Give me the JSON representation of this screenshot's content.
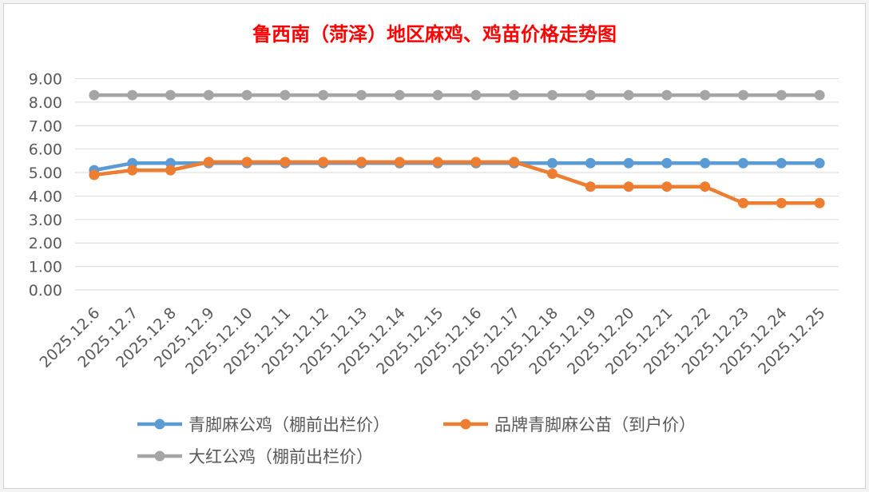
{
  "chart_data": {
    "type": "line",
    "title": "鲁西南（菏泽）地区麻鸡、鸡苗价格走势图",
    "xlabel": "",
    "ylabel": "",
    "ylim": [
      0,
      9
    ],
    "ytick_labels": [
      "0.00",
      "1.00",
      "2.00",
      "3.00",
      "4.00",
      "5.00",
      "6.00",
      "7.00",
      "8.00",
      "9.00"
    ],
    "grid": true,
    "legend_placement": "bottom",
    "categories": [
      "2025.12.6",
      "2025.12.7",
      "2025.12.8",
      "2025.12.9",
      "2025.12.10",
      "2025.12.11",
      "2025.12.12",
      "2025.12.13",
      "2025.12.14",
      "2025.12.15",
      "2025.12.16",
      "2025.12.17",
      "2025.12.18",
      "2025.12.19",
      "2025.12.20",
      "2025.12.21",
      "2025.12.22",
      "2025.12.23",
      "2025.12.24",
      "2025.12.25"
    ],
    "series": [
      {
        "name": "青脚麻公鸡（棚前出栏价）",
        "color": "#5b9bd5",
        "values": [
          5.1,
          5.4,
          5.4,
          5.4,
          5.4,
          5.4,
          5.4,
          5.4,
          5.4,
          5.4,
          5.4,
          5.4,
          5.4,
          5.4,
          5.4,
          5.4,
          5.4,
          5.4,
          5.4,
          5.4
        ]
      },
      {
        "name": "品牌青脚麻公苗（到户价）",
        "color": "#ed7d31",
        "values": [
          4.9,
          5.1,
          5.1,
          5.45,
          5.45,
          5.45,
          5.45,
          5.45,
          5.45,
          5.45,
          5.45,
          5.45,
          4.95,
          4.4,
          4.4,
          4.4,
          4.4,
          3.7,
          3.7,
          3.7
        ]
      },
      {
        "name": "大红公鸡（棚前出栏价）",
        "color": "#a5a5a5",
        "values": [
          8.3,
          8.3,
          8.3,
          8.3,
          8.3,
          8.3,
          8.3,
          8.3,
          8.3,
          8.3,
          8.3,
          8.3,
          8.3,
          8.3,
          8.3,
          8.3,
          8.3,
          8.3,
          8.3,
          8.3
        ]
      }
    ],
    "title_color": "#ff0000",
    "text_color": "#595959",
    "grid_color": "#d9d9d9"
  }
}
